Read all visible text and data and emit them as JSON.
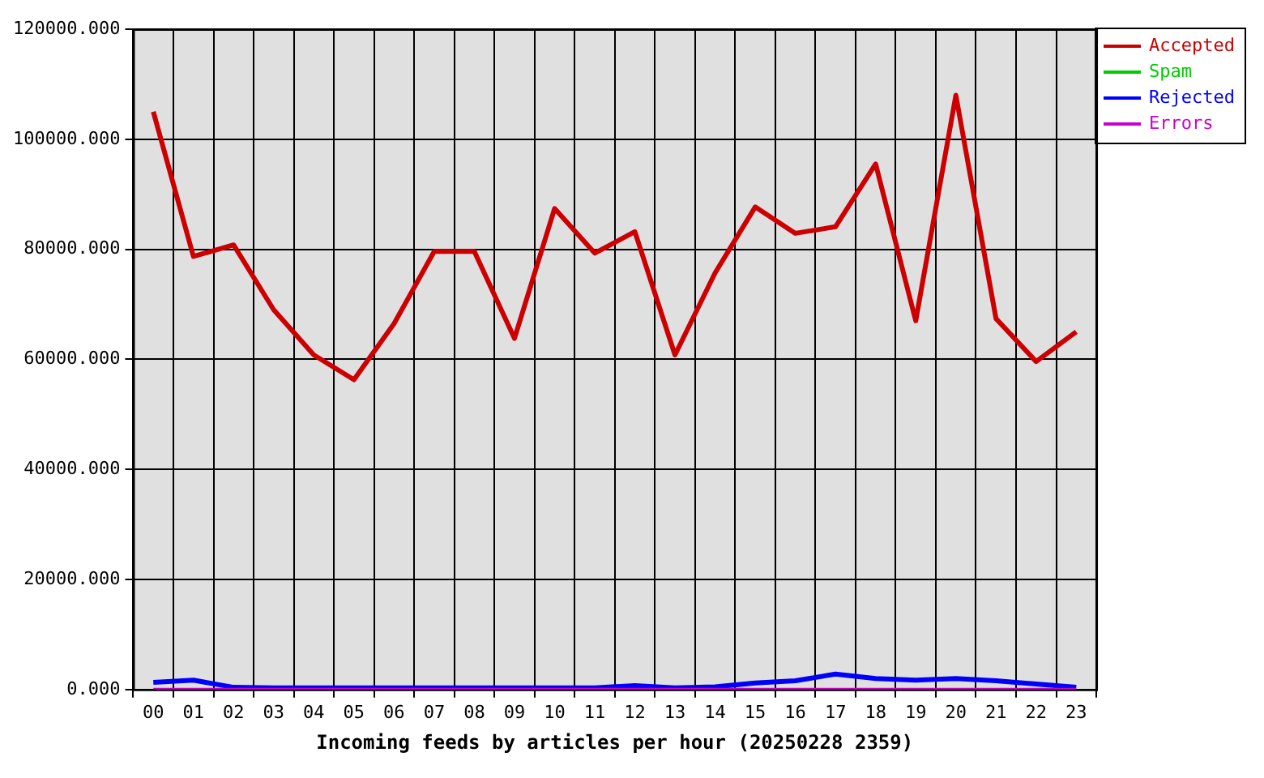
{
  "chart_data": {
    "type": "line",
    "xlabel": "Incoming feeds by articles per hour (20250228 2359)",
    "categories": [
      "00",
      "01",
      "02",
      "03",
      "04",
      "05",
      "06",
      "07",
      "08",
      "09",
      "10",
      "11",
      "12",
      "13",
      "14",
      "15",
      "16",
      "17",
      "18",
      "19",
      "20",
      "21",
      "22",
      "23"
    ],
    "series": [
      {
        "name": "Accepted",
        "color": "#cc0000",
        "values": [
          105000,
          78700,
          80800,
          69000,
          60800,
          56300,
          66500,
          79600,
          79600,
          63800,
          87400,
          79300,
          83200,
          60800,
          75700,
          87700,
          82900,
          84100,
          95500,
          67000,
          108000,
          67400,
          59600,
          65000
        ]
      },
      {
        "name": "Spam",
        "color": "#00cc00",
        "values": [
          null,
          null,
          null,
          null,
          null,
          null,
          null,
          null,
          null,
          null,
          null,
          null,
          null,
          null,
          null,
          null,
          null,
          null,
          null,
          null,
          null,
          null,
          null,
          null
        ]
      },
      {
        "name": "Rejected",
        "color": "#0000ff",
        "values": [
          1300,
          1700,
          400,
          300,
          300,
          300,
          300,
          300,
          300,
          300,
          300,
          300,
          700,
          300,
          500,
          1200,
          1600,
          2800,
          2000,
          1700,
          2000,
          1600,
          1000,
          400
        ]
      },
      {
        "name": "Errors",
        "color": "#cc00cc",
        "values": [
          0,
          0,
          0,
          0,
          0,
          0,
          0,
          0,
          0,
          0,
          0,
          0,
          0,
          0,
          0,
          0,
          0,
          0,
          0,
          0,
          0,
          0,
          0,
          0
        ]
      }
    ],
    "ylim": [
      0,
      120000
    ],
    "yticks": [
      {
        "value": 0,
        "label": "0.000"
      },
      {
        "value": 20000,
        "label": "20000.000"
      },
      {
        "value": 40000,
        "label": "40000.000"
      },
      {
        "value": 60000,
        "label": "60000.000"
      },
      {
        "value": 80000,
        "label": "80000.000"
      },
      {
        "value": 100000,
        "label": "100000.000"
      },
      {
        "value": 120000,
        "label": "120000.000"
      }
    ],
    "grid": true,
    "legend": "top right",
    "marker": "none",
    "line_style": "solid"
  }
}
